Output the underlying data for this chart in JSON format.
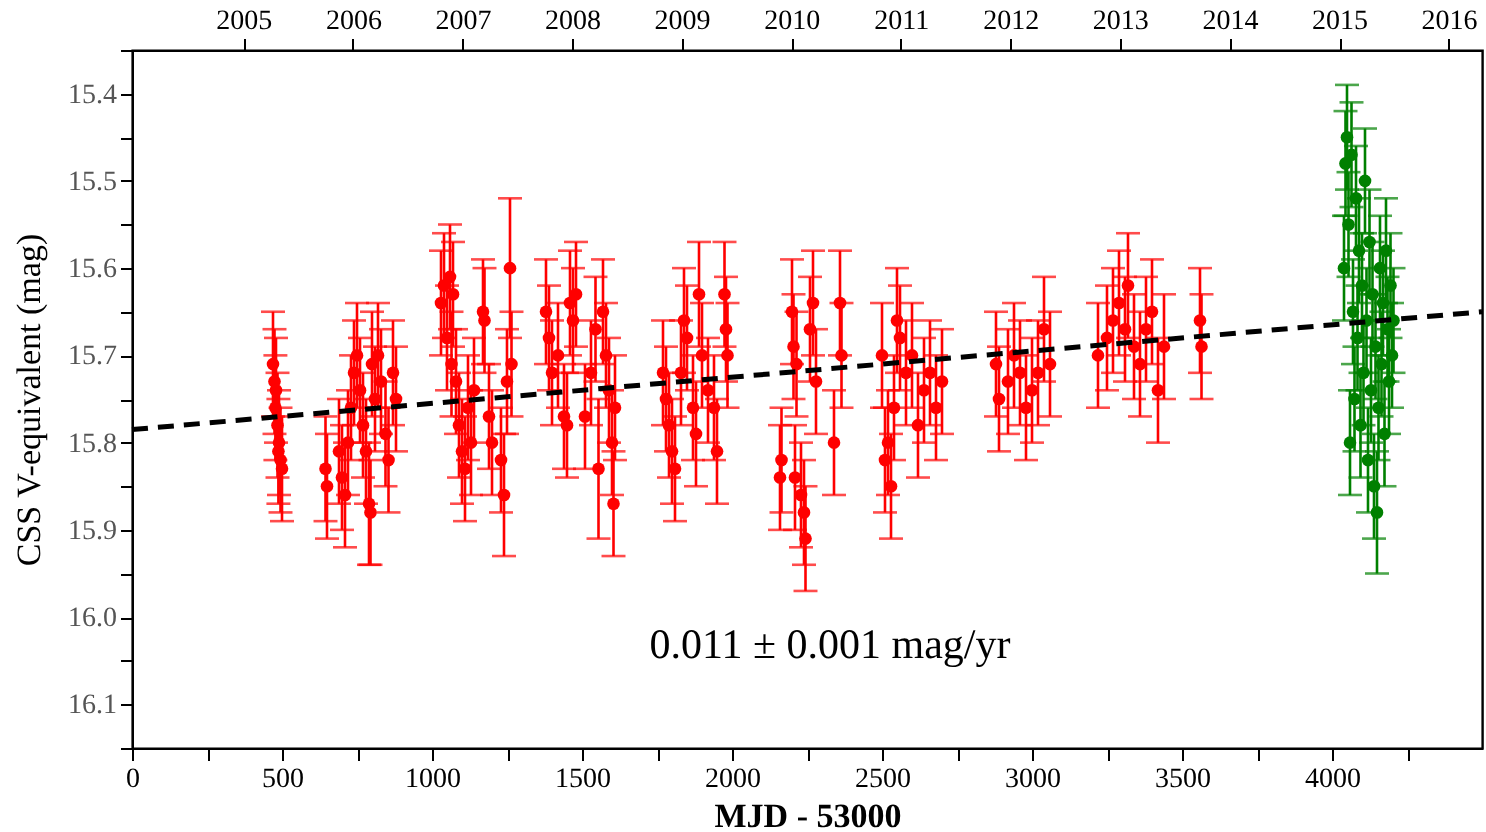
{
  "chart_data": {
    "type": "scatter",
    "xlabel": "MJD - 53000",
    "ylabel": "CSS V-equivalent (mag)",
    "x2label": null,
    "annotations": [
      "0.011 ± 0.001 mag/yr"
    ],
    "xlim": [
      0,
      4500
    ],
    "ylim": [
      16.15,
      15.35
    ],
    "x2lim": [
      2003.984,
      2016.305
    ],
    "xticks": [
      0,
      {
        "value": 250,
        "label": null
      },
      500,
      {
        "value": 750,
        "label": null
      },
      1000,
      {
        "value": 1250,
        "label": null
      },
      1500,
      {
        "value": 1750,
        "label": null
      },
      2000,
      {
        "value": 2250,
        "label": null
      },
      2500,
      {
        "value": 2750,
        "label": null
      },
      3000,
      {
        "value": 3250,
        "label": null
      },
      3500,
      {
        "value": 3750,
        "label": null
      },
      4000,
      {
        "value": 4250,
        "label": null
      }
    ],
    "yticks": [
      {
        "value": 15.35,
        "label": null
      },
      15.4,
      {
        "value": 15.45,
        "label": null
      },
      15.5,
      {
        "value": 15.55,
        "label": null
      },
      15.6,
      {
        "value": 15.65,
        "label": null
      },
      15.7,
      {
        "value": 15.75,
        "label": null
      },
      15.8,
      {
        "value": 15.85,
        "label": null
      },
      15.9,
      {
        "value": 15.95,
        "label": null
      },
      {
        "value": 16.0,
        "label": "16.0"
      },
      {
        "value": 16.05,
        "label": null
      },
      16.1,
      {
        "value": 16.15,
        "label": null
      }
    ],
    "x2ticks": [
      2005,
      2006,
      2007,
      2008,
      2009,
      2010,
      2011,
      2012,
      2013,
      2014,
      2015,
      2016
    ],
    "marker": "circle",
    "grid": false,
    "series": [
      {
        "color": "#ff0000",
        "x": [
          470,
          475,
          478,
          480,
          485,
          488,
          490,
          495,
          500,
          645,
          650,
          690,
          700,
          710,
          720,
          730,
          740,
          750,
          760,
          770,
          780,
          790,
          795,
          800,
          810,
          820,
          830,
          845,
          855,
          870,
          880,
          1030,
          1040,
          1050,
          1060,
          1065,
          1070,
          1080,
          1090,
          1100,
          1110,
          1120,
          1130,
          1140,
          1170,
          1175,
          1190,
          1200,
          1230,
          1240,
          1250,
          1260,
          1265,
          1380,
          1390,
          1400,
          1420,
          1440,
          1450,
          1460,
          1470,
          1480,
          1510,
          1530,
          1545,
          1555,
          1570,
          1580,
          1590,
          1600,
          1605,
          1610,
          1770,
          1780,
          1790,
          1800,
          1810,
          1830,
          1840,
          1850,
          1870,
          1880,
          1890,
          1900,
          1920,
          1940,
          1950,
          1975,
          1980,
          1985,
          2160,
          2165,
          2200,
          2205,
          2210,
          2215,
          2230,
          2240,
          2245,
          2260,
          2270,
          2280,
          2340,
          2360,
          2365,
          2500,
          2510,
          2520,
          2530,
          2540,
          2550,
          2560,
          2580,
          2600,
          2620,
          2640,
          2660,
          2680,
          2700,
          2880,
          2890,
          2920,
          2940,
          2960,
          2980,
          3000,
          3020,
          3040,
          3060,
          3220,
          3250,
          3270,
          3290,
          3310,
          3320,
          3340,
          3360,
          3380,
          3400,
          3420,
          3440,
          3560,
          3565
        ],
        "values": [
          15.71,
          15.73,
          15.76,
          15.74,
          15.78,
          15.81,
          15.8,
          15.82,
          15.83,
          15.83,
          15.85,
          15.81,
          15.84,
          15.86,
          15.8,
          15.76,
          15.72,
          15.7,
          15.74,
          15.78,
          15.81,
          15.87,
          15.88,
          15.71,
          15.75,
          15.7,
          15.73,
          15.79,
          15.82,
          15.72,
          15.75,
          15.64,
          15.62,
          15.68,
          15.61,
          15.71,
          15.63,
          15.73,
          15.78,
          15.81,
          15.83,
          15.76,
          15.8,
          15.74,
          15.65,
          15.66,
          15.77,
          15.8,
          15.82,
          15.86,
          15.73,
          15.6,
          15.71,
          15.65,
          15.68,
          15.72,
          15.7,
          15.77,
          15.78,
          15.64,
          15.66,
          15.63,
          15.77,
          15.72,
          15.67,
          15.83,
          15.65,
          15.7,
          15.74,
          15.8,
          15.87,
          15.76,
          15.72,
          15.75,
          15.78,
          15.81,
          15.83,
          15.72,
          15.66,
          15.68,
          15.76,
          15.79,
          15.63,
          15.7,
          15.74,
          15.76,
          15.81,
          15.63,
          15.67,
          15.7,
          15.84,
          15.82,
          15.65,
          15.69,
          15.84,
          15.71,
          15.86,
          15.88,
          15.91,
          15.67,
          15.64,
          15.73,
          15.8,
          15.64,
          15.7,
          15.7,
          15.82,
          15.8,
          15.85,
          15.76,
          15.66,
          15.68,
          15.72,
          15.7,
          15.78,
          15.74,
          15.72,
          15.76,
          15.73,
          15.71,
          15.75,
          15.73,
          15.7,
          15.72,
          15.76,
          15.74,
          15.72,
          15.67,
          15.71,
          15.7,
          15.68,
          15.66,
          15.64,
          15.67,
          15.62,
          15.69,
          15.71,
          15.67,
          15.65,
          15.74,
          15.69,
          15.66,
          15.69
        ],
        "errors": [
          0.06,
          0.06,
          0.06,
          0.06,
          0.06,
          0.06,
          0.06,
          0.06,
          0.06,
          0.06,
          0.06,
          0.06,
          0.06,
          0.06,
          0.06,
          0.06,
          0.06,
          0.06,
          0.06,
          0.06,
          0.06,
          0.07,
          0.06,
          0.06,
          0.06,
          0.06,
          0.06,
          0.06,
          0.06,
          0.06,
          0.06,
          0.06,
          0.06,
          0.06,
          0.06,
          0.06,
          0.06,
          0.06,
          0.06,
          0.06,
          0.06,
          0.06,
          0.06,
          0.06,
          0.06,
          0.06,
          0.06,
          0.06,
          0.06,
          0.07,
          0.06,
          0.08,
          0.06,
          0.06,
          0.06,
          0.06,
          0.06,
          0.06,
          0.06,
          0.06,
          0.06,
          0.06,
          0.06,
          0.06,
          0.06,
          0.08,
          0.06,
          0.06,
          0.06,
          0.06,
          0.06,
          0.06,
          0.06,
          0.06,
          0.06,
          0.06,
          0.06,
          0.06,
          0.06,
          0.06,
          0.06,
          0.06,
          0.06,
          0.06,
          0.06,
          0.06,
          0.06,
          0.06,
          0.06,
          0.06,
          0.06,
          0.06,
          0.06,
          0.06,
          0.06,
          0.06,
          0.06,
          0.06,
          0.06,
          0.06,
          0.06,
          0.06,
          0.06,
          0.06,
          0.06,
          0.06,
          0.06,
          0.06,
          0.06,
          0.06,
          0.06,
          0.06,
          0.06,
          0.06,
          0.06,
          0.06,
          0.06,
          0.06,
          0.06,
          0.06,
          0.06,
          0.06,
          0.06,
          0.06,
          0.06,
          0.06,
          0.06,
          0.06,
          0.06,
          0.06,
          0.06,
          0.06,
          0.06,
          0.06,
          0.06,
          0.06,
          0.06,
          0.06,
          0.06,
          0.06,
          0.06,
          0.06,
          0.06
        ]
      },
      {
        "color": "#008000",
        "x": [
          4040,
          4045,
          4050,
          4055,
          4060,
          4065,
          4070,
          4075,
          4080,
          4085,
          4090,
          4095,
          4100,
          4105,
          4110,
          4115,
          4120,
          4125,
          4130,
          4135,
          4140,
          4145,
          4150,
          4155,
          4160,
          4165,
          4170,
          4175,
          4180,
          4185,
          4190,
          4195,
          4200,
          4205
        ],
        "values": [
          15.6,
          15.48,
          15.45,
          15.55,
          15.8,
          15.47,
          15.65,
          15.75,
          15.52,
          15.68,
          15.58,
          15.78,
          15.62,
          15.72,
          15.5,
          15.66,
          15.82,
          15.57,
          15.74,
          15.63,
          15.85,
          15.69,
          15.88,
          15.76,
          15.6,
          15.71,
          15.64,
          15.79,
          15.58,
          15.67,
          15.73,
          15.62,
          15.7,
          15.66
        ],
        "errors": [
          0.06,
          0.06,
          0.06,
          0.06,
          0.06,
          0.06,
          0.06,
          0.06,
          0.06,
          0.06,
          0.06,
          0.06,
          0.06,
          0.06,
          0.06,
          0.06,
          0.06,
          0.06,
          0.06,
          0.06,
          0.06,
          0.06,
          0.07,
          0.06,
          0.06,
          0.06,
          0.06,
          0.06,
          0.06,
          0.06,
          0.06,
          0.06,
          0.06,
          0.06
        ]
      },
      {
        "type": "line",
        "color": "#000000",
        "line_style": "dashed",
        "marker": "none",
        "x": [
          0,
          4500
        ],
        "values": [
          15.785,
          15.65
        ]
      }
    ]
  }
}
